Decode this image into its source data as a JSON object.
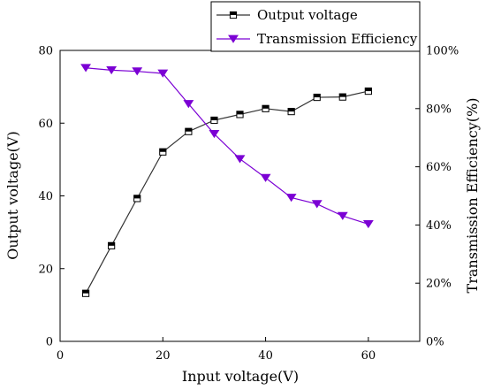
{
  "chart_data": {
    "type": "line",
    "x": [
      5,
      10,
      15,
      20,
      25,
      30,
      35,
      40,
      45,
      50,
      55,
      60
    ],
    "xlabel": "Input voltage(V)",
    "ylabel": "Output voltage(V)",
    "y2label": "Transmission Efficiency(%)",
    "xlim": [
      0,
      70
    ],
    "ylim": [
      0,
      80
    ],
    "y2lim": [
      0,
      100
    ],
    "x_ticks": [
      0,
      20,
      40,
      60
    ],
    "y_ticks": [
      0,
      20,
      40,
      60,
      80
    ],
    "y2_ticks": [
      "0%",
      "20%",
      "40%",
      "60%",
      "80%",
      "100%"
    ],
    "grid": false,
    "legend_position": "top-right",
    "series": [
      {
        "name": "Output voltage",
        "axis": "left",
        "marker": "half-filled-square",
        "color": "#333333",
        "values": [
          13.2,
          26.3,
          39.3,
          52.1,
          57.7,
          60.8,
          62.4,
          64.0,
          63.2,
          67.1,
          67.2,
          68.8
        ]
      },
      {
        "name": "Transmission Efficiency",
        "axis": "right",
        "marker": "down-triangle",
        "color": "#7B00D4",
        "values": [
          94,
          93.2,
          92.8,
          92.1,
          81.6,
          71.3,
          62.7,
          56.2,
          49.4,
          47.2,
          43.1,
          40.3
        ]
      }
    ]
  }
}
